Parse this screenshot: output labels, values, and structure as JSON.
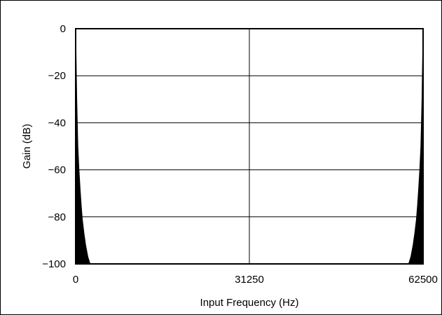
{
  "chart_data": {
    "type": "line",
    "title": "",
    "xlabel": "Input Frequency (Hz)",
    "ylabel": "Gain (dB)",
    "xlim": [
      0,
      62500
    ],
    "ylim": [
      -100,
      0
    ],
    "x_ticks": [
      {
        "value": 0,
        "label": "0"
      },
      {
        "value": 31250,
        "label": "31250"
      },
      {
        "value": 62500,
        "label": "62500"
      }
    ],
    "y_ticks": [
      {
        "value": 0,
        "label": "0"
      },
      {
        "value": -20,
        "label": "−20"
      },
      {
        "value": -40,
        "label": "−40"
      },
      {
        "value": -60,
        "label": "−60"
      },
      {
        "value": -80,
        "label": "−80"
      },
      {
        "value": -100,
        "label": "−100"
      }
    ],
    "grid": true,
    "series": [
      {
        "color": "#000000",
        "x": [
          0,
          100,
          200,
          400,
          600,
          800,
          1000,
          1200,
          1500,
          1800,
          2200,
          2600,
          59900,
          60300,
          60700,
          61000,
          61300,
          61500,
          61700,
          61900,
          62100,
          62300,
          62400,
          62500
        ],
        "y": [
          0,
          -15,
          -30,
          -50,
          -60,
          -68,
          -75,
          -81,
          -87,
          -92,
          -97,
          -100,
          -100,
          -97,
          -92,
          -87,
          -81,
          -75,
          -68,
          -60,
          -50,
          -30,
          -15,
          0
        ],
        "fill": "below"
      }
    ]
  }
}
